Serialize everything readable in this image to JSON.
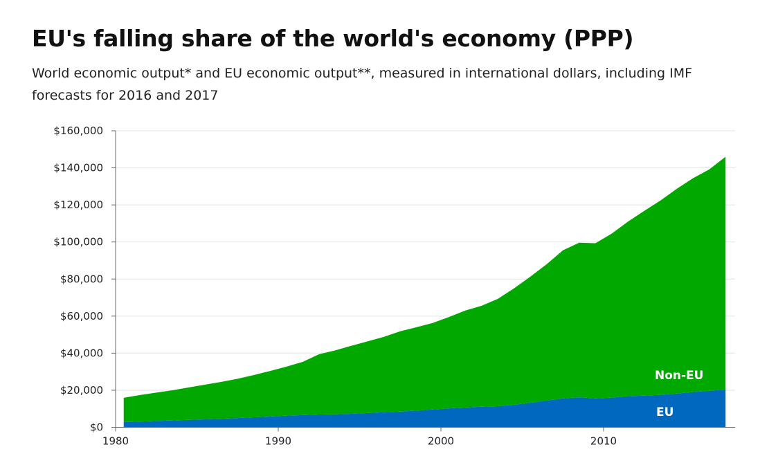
{
  "chart_data": {
    "type": "area",
    "stacked": true,
    "title": "EU's falling share of the world's economy (PPP)",
    "subtitle": "World economic output* and EU economic output**, measured in international dollars, including IMF forecasts for 2016 and 2017",
    "xlabel": "",
    "ylabel": "",
    "x": [
      1980,
      1981,
      1982,
      1983,
      1984,
      1985,
      1986,
      1987,
      1988,
      1989,
      1990,
      1991,
      1992,
      1993,
      1994,
      1995,
      1996,
      1997,
      1998,
      1999,
      2000,
      2001,
      2002,
      2003,
      2004,
      2005,
      2006,
      2007,
      2008,
      2009,
      2010,
      2011,
      2012,
      2013,
      2014,
      2015,
      2016,
      2017
    ],
    "series": [
      {
        "name": "EU",
        "color": "#0068be",
        "values": [
          2800,
          3100,
          3400,
          3700,
          4000,
          4300,
          4600,
          5000,
          5400,
          5800,
          6300,
          6600,
          6900,
          7000,
          7300,
          7700,
          8100,
          8500,
          9000,
          9600,
          10200,
          10700,
          11100,
          11400,
          12200,
          13200,
          14400,
          15600,
          16200,
          15600,
          16000,
          16800,
          17100,
          17500,
          18200,
          19000,
          19700,
          20400
        ]
      },
      {
        "name": "Non-EU",
        "color": "#00a800",
        "values": [
          13100,
          14300,
          15300,
          16300,
          17500,
          18700,
          19900,
          21200,
          22800,
          24600,
          26400,
          28700,
          32500,
          34500,
          36700,
          38700,
          40700,
          43300,
          45000,
          46700,
          49300,
          52300,
          54500,
          57900,
          62800,
          68100,
          73600,
          79900,
          83400,
          83700,
          88500,
          94200,
          99700,
          104900,
          110500,
          115400,
          119500,
          125600
        ]
      }
    ],
    "ylim": [
      0,
      160000
    ],
    "y_ticks": [
      0,
      20000,
      40000,
      60000,
      80000,
      100000,
      120000,
      140000,
      160000
    ],
    "y_tick_labels": [
      "$0",
      "$20,000",
      "$40,000",
      "$60,000",
      "$80,000",
      "$100,000",
      "$120,000",
      "$140,000",
      "$160,000"
    ],
    "x_ticks": [
      1980,
      1990,
      2000,
      2010
    ],
    "x_tick_labels": [
      "1980",
      "1990",
      "2000",
      "2010"
    ],
    "grid": true,
    "legend": "inline-labels-bottom-right"
  }
}
